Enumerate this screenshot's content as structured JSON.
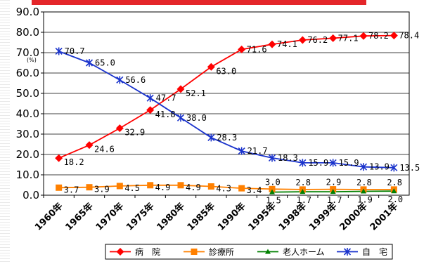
{
  "chart_data": {
    "type": "line",
    "title": "",
    "xlabel": "",
    "ylabel": "",
    "y_unit": "(%)",
    "ylim": [
      0,
      90
    ],
    "yticks": [
      "0.0",
      "10.0",
      "20.0",
      "30.0",
      "40.0",
      "50.0",
      "60.0",
      "70.0",
      "80.0",
      "90.0"
    ],
    "categories": [
      "1960年",
      "1965年",
      "1970年",
      "1975年",
      "1980年",
      "1985年",
      "1990年",
      "1995年",
      "1998年",
      "1999年",
      "2000年",
      "2001年"
    ],
    "grid": "horizontal",
    "legend_position": "bottom",
    "series": [
      {
        "name": "病　院",
        "color": "#ff0000",
        "marker": "diamond",
        "values": [
          18.2,
          24.6,
          32.9,
          41.8,
          52.1,
          63.0,
          71.6,
          74.1,
          76.2,
          77.1,
          78.2,
          78.4
        ],
        "labels": [
          "18.2",
          "24.6",
          "32.9",
          "41.8",
          "52.1",
          "63.0",
          "71.6",
          "74.1",
          "76.2",
          "77.1",
          "78.2",
          "78.4"
        ]
      },
      {
        "name": "診療所",
        "color": "#ff8000",
        "marker": "square",
        "values": [
          3.7,
          3.9,
          4.5,
          4.9,
          4.9,
          4.3,
          3.4,
          3.0,
          2.8,
          2.9,
          2.8,
          2.8
        ],
        "labels": [
          "3.7",
          "3.9",
          "4.5",
          "4.9",
          "4.9",
          "4.3",
          "3.4",
          "3.0",
          "2.8",
          "2.9",
          "2.8",
          "2.8"
        ]
      },
      {
        "name": "老人ホーム",
        "color": "#008000",
        "marker": "triangle",
        "values": [
          null,
          null,
          null,
          null,
          null,
          null,
          null,
          1.5,
          1.7,
          1.7,
          1.9,
          2.0
        ],
        "labels": [
          null,
          null,
          null,
          null,
          null,
          null,
          null,
          "1.5",
          "1.7",
          "1.7",
          "1.9",
          "2.0"
        ]
      },
      {
        "name": "自　宅",
        "color": "#1a33cc",
        "marker": "x",
        "values": [
          70.7,
          65.0,
          56.6,
          47.7,
          38.0,
          28.3,
          21.7,
          18.3,
          15.9,
          15.9,
          13.9,
          13.5
        ],
        "labels": [
          "70.7",
          "65.0",
          "56.6",
          "47.7",
          "38.0",
          "28.3",
          "21.7",
          "18.3",
          "15.9",
          "15.9",
          "13.9",
          "13.5"
        ]
      }
    ]
  }
}
